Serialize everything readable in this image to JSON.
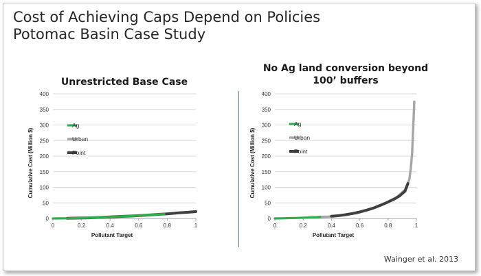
{
  "slide": {
    "title_line1": "Cost of Achieving Caps Depend on Policies",
    "title_line2": "Potomac Basin Case Study",
    "credit": "Wainger et al. 2013"
  },
  "colors": {
    "Ag": "#2bb04a",
    "Urban": "#a6a6a6",
    "Point": "#404040",
    "grid": "#d9d9d9",
    "divider": "#4a7bc8"
  },
  "chart_data": [
    {
      "type": "line",
      "title": "Unrestricted Base Case",
      "xlabel": "Pollutant Target",
      "ylabel": "Cumulative Cost (Million $)",
      "xlim": [
        0,
        1
      ],
      "ylim": [
        0,
        400
      ],
      "xticks": [
        "0",
        "0.2",
        "0.4",
        "0.6",
        "0.8",
        "1"
      ],
      "yticks": [
        "0",
        "50",
        "100",
        "150",
        "200",
        "250",
        "300",
        "350",
        "400"
      ],
      "grid": true,
      "legend": "upper-left",
      "legend_entries": [
        "Ag",
        "Urban",
        "Point"
      ],
      "series": [
        {
          "name": "Ag",
          "x": [
            0,
            0.05,
            0.1,
            0.2,
            0.3,
            0.4,
            0.5,
            0.6,
            0.7,
            0.78
          ],
          "y": [
            0,
            0.2,
            0.5,
            1.5,
            3,
            5,
            7,
            9.5,
            12,
            14
          ]
        },
        {
          "name": "Urban",
          "x": [
            0.78,
            0.85,
            0.9,
            0.95,
            1.0
          ],
          "y": [
            14,
            17,
            19,
            21,
            23
          ]
        },
        {
          "name": "Point",
          "x": [
            0.1,
            0.15,
            0.25,
            0.35,
            0.45,
            0.55,
            0.65,
            0.72,
            0.8,
            0.88,
            0.95,
            1.0
          ],
          "y": [
            0.5,
            1,
            2,
            4,
            6,
            8,
            10.5,
            12.5,
            15,
            18,
            20,
            22
          ]
        }
      ]
    },
    {
      "type": "line",
      "title": "No Ag land conversion beyond 100’ buffers",
      "xlabel": "Pollutant Target",
      "ylabel": "Cumulative Cost (Million $)",
      "xlim": [
        0,
        1
      ],
      "ylim": [
        0,
        400
      ],
      "xticks": [
        "0",
        "0.2",
        "0.4",
        "0.6",
        "0.8",
        "1"
      ],
      "yticks": [
        "0",
        "50",
        "100",
        "150",
        "200",
        "250",
        "300",
        "350",
        "400"
      ],
      "grid": true,
      "legend": "upper-left",
      "legend_entries": [
        "Ag",
        "Urban",
        "Point"
      ],
      "series": [
        {
          "name": "Ag",
          "x": [
            0,
            0.05,
            0.1,
            0.15,
            0.2,
            0.25,
            0.3,
            0.32
          ],
          "y": [
            0,
            0.5,
            1,
            1.5,
            2.5,
            3.5,
            4.5,
            5
          ]
        },
        {
          "name": "Urban",
          "x": [
            0.32,
            0.38,
            0.42,
            0.5,
            0.58,
            0.68,
            0.76,
            0.86,
            0.92,
            0.95,
            0.96,
            0.97,
            0.975,
            0.98,
            0.985
          ],
          "y": [
            5,
            6,
            8,
            12,
            17,
            30,
            45,
            68,
            92,
            125,
            160,
            210,
            270,
            320,
            375
          ]
        },
        {
          "name": "Point",
          "x": [
            0.4,
            0.45,
            0.5,
            0.55,
            0.6,
            0.65,
            0.7,
            0.75,
            0.8,
            0.85,
            0.88,
            0.9,
            0.92,
            0.94
          ],
          "y": [
            7,
            9,
            12,
            16,
            21,
            27,
            34,
            43,
            53,
            64,
            72,
            80,
            88,
            112
          ]
        }
      ]
    }
  ]
}
